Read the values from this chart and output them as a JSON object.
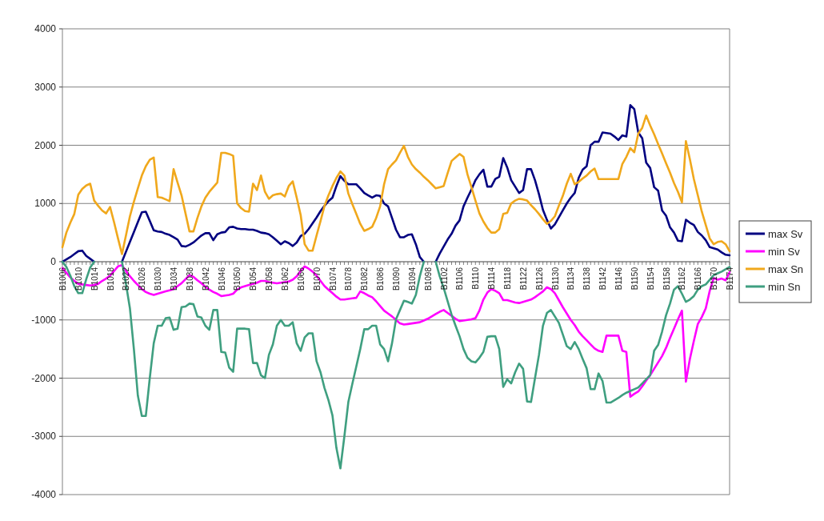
{
  "chart_data": {
    "type": "line",
    "categories": [
      "B1006",
      null,
      null,
      null,
      "B1010",
      null,
      null,
      null,
      "B1014",
      null,
      null,
      null,
      "B1018",
      null,
      null,
      null,
      "B1022",
      null,
      null,
      null,
      "B1026",
      null,
      null,
      null,
      "B1030",
      null,
      null,
      null,
      "B1034",
      null,
      null,
      null,
      "B1038",
      null,
      null,
      null,
      "B1042",
      null,
      null,
      null,
      "B1046",
      null,
      null,
      null,
      "B1050",
      null,
      null,
      null,
      "B1054",
      null,
      null,
      null,
      "B1058",
      null,
      null,
      null,
      "B1062",
      null,
      null,
      null,
      "B1066",
      null,
      null,
      null,
      "B1070",
      null,
      null,
      null,
      "B1074",
      null,
      null,
      null,
      "B1078",
      null,
      null,
      null,
      "B1082",
      null,
      null,
      null,
      "B1086",
      null,
      null,
      null,
      "B1090",
      null,
      null,
      null,
      "B1094",
      null,
      null,
      null,
      "B1098",
      null,
      null,
      null,
      "B1102",
      null,
      null,
      null,
      "B1106",
      null,
      null,
      null,
      "B1110",
      null,
      null,
      null,
      "B1114",
      null,
      null,
      null,
      "B1118",
      null,
      null,
      null,
      "B1122",
      null,
      null,
      null,
      "B1126",
      null,
      null,
      null,
      "B1130",
      null,
      null,
      null,
      "B1134",
      null,
      null,
      null,
      "B1138",
      null,
      null,
      null,
      "B1142",
      null,
      null,
      null,
      "B1146",
      null,
      null,
      null,
      "B1150",
      null,
      null,
      null,
      "B1154",
      null,
      null,
      null,
      "B1158",
      null,
      null,
      null,
      "B1162",
      null,
      null,
      null,
      "B1166",
      null,
      null,
      null,
      "B1170",
      null,
      null,
      null,
      "B1174"
    ],
    "series": [
      {
        "name": "max Sv",
        "color": "#000080",
        "values": [
          0,
          40,
          80,
          130,
          180,
          190,
          100,
          50,
          0,
          null,
          null,
          null,
          null,
          null,
          null,
          0,
          170,
          340,
          510,
          680,
          850,
          860,
          700,
          540,
          520,
          510,
          480,
          460,
          420,
          380,
          270,
          260,
          290,
          330,
          390,
          450,
          490,
          490,
          370,
          470,
          500,
          510,
          590,
          600,
          570,
          560,
          560,
          550,
          550,
          530,
          500,
          490,
          470,
          420,
          360,
          300,
          350,
          320,
          270,
          330,
          440,
          480,
          560,
          660,
          760,
          870,
          960,
          1040,
          1100,
          1300,
          1470,
          1390,
          1330,
          1330,
          1330,
          1260,
          1180,
          1140,
          1100,
          1140,
          1130,
          1000,
          950,
          750,
          550,
          420,
          420,
          460,
          470,
          300,
          80,
          0,
          null,
          null,
          0,
          140,
          260,
          380,
          480,
          620,
          710,
          950,
          1100,
          1240,
          1400,
          1500,
          1580,
          1290,
          1290,
          1420,
          1460,
          1780,
          1620,
          1400,
          1290,
          1180,
          1230,
          1590,
          1590,
          1400,
          1160,
          890,
          720,
          570,
          640,
          760,
          880,
          1000,
          1100,
          1180,
          1440,
          1580,
          1640,
          2000,
          2060,
          2060,
          2220,
          2210,
          2200,
          2150,
          2090,
          2170,
          2150,
          2690,
          2620,
          2220,
          2120,
          1700,
          1610,
          1280,
          1220,
          880,
          790,
          590,
          500,
          360,
          350,
          720,
          670,
          630,
          510,
          450,
          370,
          250,
          230,
          210,
          160,
          120,
          110
        ]
      },
      {
        "name": "min Sv",
        "color": "#ff00ff",
        "values": [
          -110,
          -190,
          -270,
          -330,
          -380,
          -390,
          -400,
          -410,
          -400,
          -380,
          -330,
          -290,
          -240,
          -160,
          -80,
          -60,
          -160,
          -250,
          -330,
          -400,
          -470,
          -520,
          -550,
          -570,
          -550,
          -530,
          -510,
          -490,
          -470,
          -420,
          -370,
          -300,
          -230,
          -260,
          -320,
          -370,
          -430,
          -480,
          -520,
          -550,
          -590,
          -580,
          -570,
          -550,
          -480,
          -440,
          -420,
          -400,
          -380,
          -360,
          -330,
          -330,
          -350,
          -360,
          -370,
          -360,
          -350,
          -340,
          -310,
          -250,
          -160,
          -80,
          -120,
          -170,
          -240,
          -330,
          -420,
          -480,
          -540,
          -600,
          -650,
          -650,
          -640,
          -630,
          -620,
          -510,
          -540,
          -580,
          -610,
          -680,
          -760,
          -840,
          -890,
          -940,
          -1000,
          -1060,
          -1080,
          -1070,
          -1060,
          -1050,
          -1040,
          -1010,
          -980,
          -940,
          -900,
          -860,
          -830,
          -880,
          -930,
          -980,
          -1020,
          -1010,
          -1000,
          -990,
          -970,
          -840,
          -650,
          -530,
          -470,
          -500,
          -540,
          -660,
          -660,
          -680,
          -700,
          -710,
          -690,
          -670,
          -650,
          -610,
          -560,
          -510,
          -440,
          -470,
          -540,
          -660,
          -780,
          -890,
          -1000,
          -1090,
          -1200,
          -1280,
          -1350,
          -1420,
          -1490,
          -1530,
          -1550,
          -1270,
          -1270,
          -1270,
          -1270,
          -1530,
          -1550,
          -2320,
          -2270,
          -2230,
          -2140,
          -2040,
          -1950,
          -1840,
          -1730,
          -1620,
          -1480,
          -1310,
          -1150,
          -990,
          -840,
          -2060,
          -1670,
          -1360,
          -1070,
          -950,
          -800,
          -500,
          -280,
          -310,
          -290,
          -320,
          -180
        ]
      },
      {
        "name": "max Sn",
        "color": "#f0a81c",
        "values": [
          250,
          500,
          670,
          820,
          1150,
          1250,
          1310,
          1340,
          1050,
          960,
          880,
          830,
          940,
          680,
          400,
          130,
          450,
          780,
          1030,
          1260,
          1480,
          1640,
          1750,
          1790,
          1110,
          1100,
          1070,
          1040,
          1590,
          1360,
          1140,
          830,
          520,
          520,
          750,
          950,
          1100,
          1200,
          1280,
          1360,
          1870,
          1870,
          1850,
          1820,
          1000,
          920,
          870,
          860,
          1340,
          1230,
          1480,
          1200,
          1080,
          1140,
          1160,
          1170,
          1120,
          1300,
          1380,
          1100,
          800,
          300,
          190,
          190,
          450,
          700,
          960,
          1140,
          1300,
          1440,
          1550,
          1480,
          1170,
          990,
          820,
          650,
          530,
          560,
          600,
          750,
          950,
          1330,
          1590,
          1670,
          1740,
          1870,
          1990,
          1800,
          1670,
          1590,
          1530,
          1460,
          1400,
          1330,
          1260,
          1280,
          1300,
          1520,
          1730,
          1790,
          1850,
          1800,
          1500,
          1280,
          1050,
          830,
          690,
          580,
          500,
          500,
          560,
          820,
          840,
          1000,
          1050,
          1080,
          1070,
          1050,
          970,
          900,
          820,
          730,
          650,
          700,
          780,
          960,
          1130,
          1340,
          1510,
          1330,
          1370,
          1430,
          1480,
          1550,
          1600,
          1420,
          1420,
          1420,
          1420,
          1420,
          1420,
          1680,
          1800,
          1950,
          1880,
          2200,
          2300,
          2510,
          2340,
          2190,
          2020,
          1860,
          1690,
          1530,
          1350,
          1200,
          1020,
          2070,
          1760,
          1420,
          1140,
          860,
          630,
          400,
          300,
          340,
          350,
          300,
          180
        ]
      },
      {
        "name": "min Sn",
        "color": "#3f9f80",
        "values": [
          0,
          -90,
          -240,
          -420,
          -540,
          -540,
          -300,
          -100,
          0,
          null,
          null,
          null,
          null,
          null,
          null,
          0,
          -380,
          -800,
          -1500,
          -2300,
          -2650,
          -2650,
          -2000,
          -1400,
          -1100,
          -1100,
          -970,
          -960,
          -1170,
          -1150,
          -780,
          -770,
          -720,
          -730,
          -940,
          -960,
          -1100,
          -1170,
          -830,
          -830,
          -1550,
          -1560,
          -1820,
          -1890,
          -1150,
          -1150,
          -1150,
          -1160,
          -1740,
          -1740,
          -1950,
          -2000,
          -1600,
          -1420,
          -1100,
          -1000,
          -1100,
          -1100,
          -1040,
          -1400,
          -1530,
          -1300,
          -1230,
          -1230,
          -1710,
          -1900,
          -2170,
          -2380,
          -2640,
          -3200,
          -3550,
          -3000,
          -2410,
          -2100,
          -1800,
          -1500,
          -1160,
          -1160,
          -1100,
          -1100,
          -1420,
          -1500,
          -1710,
          -1400,
          -990,
          -830,
          -670,
          -690,
          -720,
          -570,
          -250,
          0,
          null,
          null,
          0,
          -250,
          -450,
          -680,
          -910,
          -1100,
          -1280,
          -1500,
          -1650,
          -1710,
          -1730,
          -1650,
          -1550,
          -1290,
          -1280,
          -1280,
          -1500,
          -2150,
          -2020,
          -2090,
          -1900,
          -1750,
          -1840,
          -2400,
          -2410,
          -2000,
          -1600,
          -1100,
          -880,
          -830,
          -940,
          -1050,
          -1250,
          -1450,
          -1500,
          -1380,
          -1500,
          -1670,
          -1830,
          -2190,
          -2190,
          -1920,
          -2050,
          -2420,
          -2420,
          -2380,
          -2340,
          -2290,
          -2250,
          -2220,
          -2190,
          -2160,
          -2090,
          -2020,
          -1950,
          -1530,
          -1430,
          -1200,
          -920,
          -720,
          -480,
          -420,
          -550,
          -690,
          -650,
          -590,
          -480,
          -420,
          -390,
          -310,
          -230,
          -200,
          -170,
          -130,
          -90
        ]
      }
    ],
    "ylim": [
      -4000,
      4000
    ],
    "yticks": [
      -4000,
      -3000,
      -2000,
      -1000,
      0,
      1000,
      2000,
      3000,
      4000
    ],
    "grid": "y",
    "legend": "right",
    "marker": "none",
    "line_style": "solid"
  }
}
